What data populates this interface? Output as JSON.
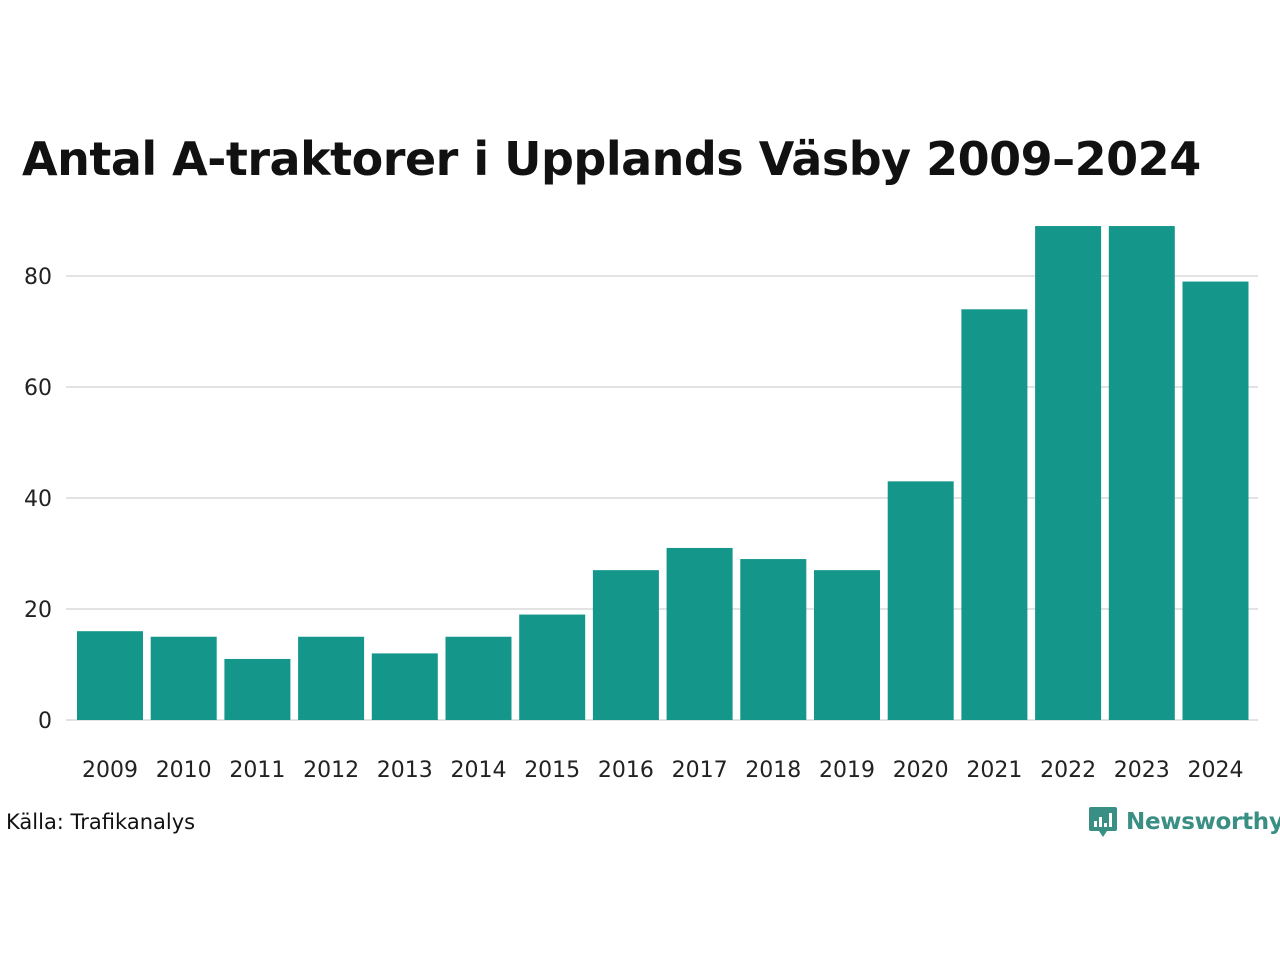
{
  "title": "Antal A-traktorer i Upplands Väsby 2009–2024",
  "source": "Källa: Trafikanalys",
  "brand": {
    "name": "Newsworthy",
    "color": "#3a8f84",
    "icon": "newsworthy-logo-icon"
  },
  "chart_data": {
    "type": "bar",
    "categories": [
      "2009",
      "2010",
      "2011",
      "2012",
      "2013",
      "2014",
      "2015",
      "2016",
      "2017",
      "2018",
      "2019",
      "2020",
      "2021",
      "2022",
      "2023",
      "2024"
    ],
    "values": [
      16,
      15,
      11,
      15,
      12,
      15,
      19,
      27,
      31,
      29,
      27,
      43,
      74,
      89,
      89,
      79
    ],
    "yticks": [
      0,
      20,
      40,
      60,
      80
    ],
    "ylim": [
      0,
      90
    ],
    "grid": true,
    "bar_color": "#14968a",
    "grid_color": "#e3e3e3"
  }
}
